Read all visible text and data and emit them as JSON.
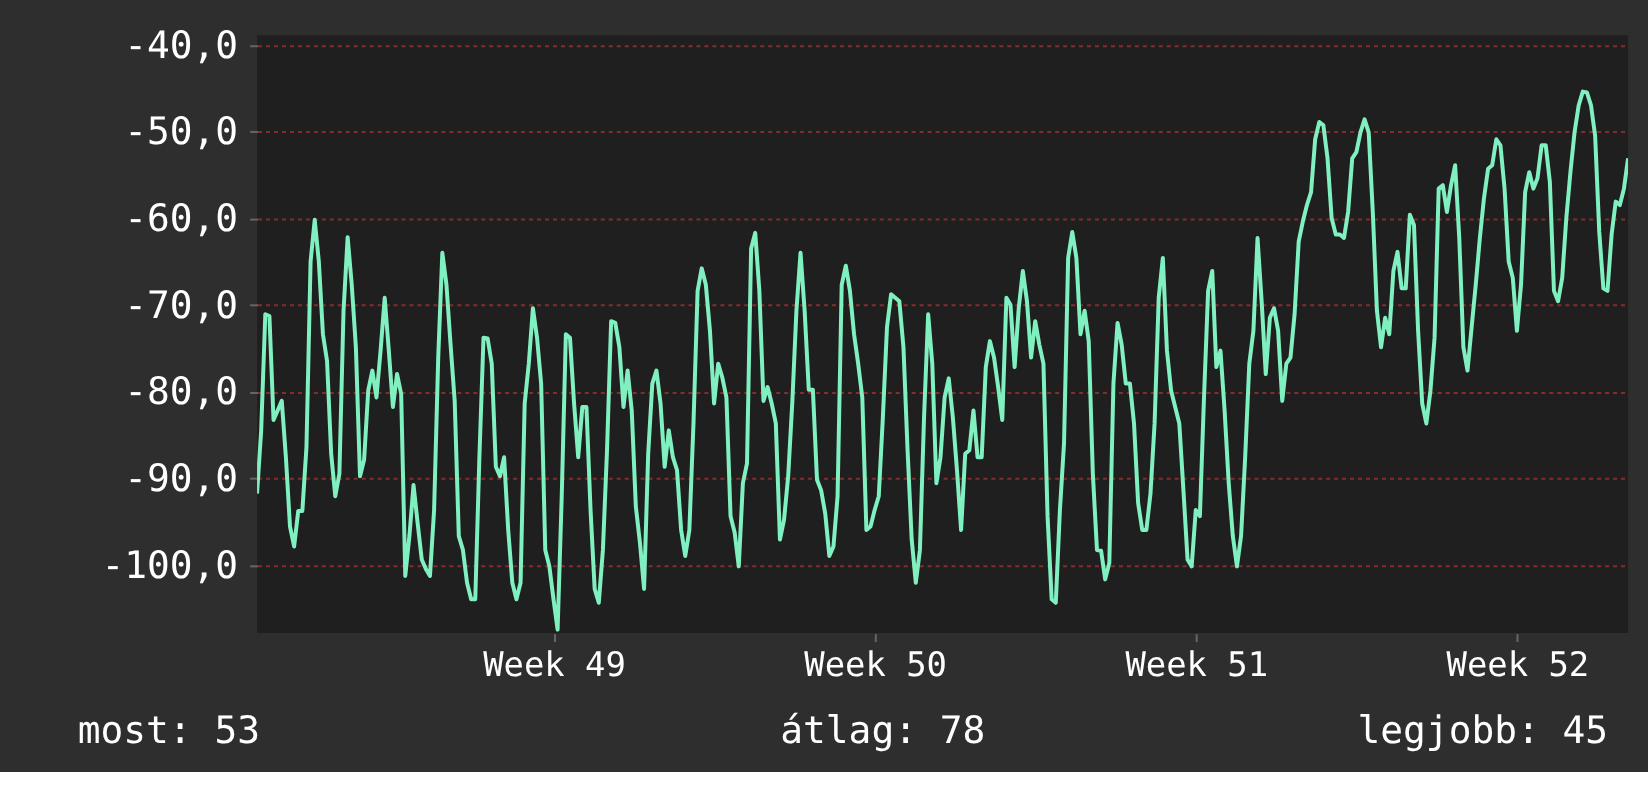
{
  "chart_data": {
    "type": "line",
    "categories": [
      null,
      null,
      null,
      null,
      null,
      null,
      null,
      null,
      null,
      null,
      null,
      null,
      null,
      null,
      null,
      null,
      null,
      null,
      null,
      null,
      null,
      null,
      null,
      null,
      null,
      null,
      null,
      null,
      null,
      null,
      null,
      null,
      null,
      null,
      null,
      null,
      null,
      null,
      null,
      null,
      null,
      null,
      null,
      null,
      null,
      null,
      null,
      null,
      null,
      null,
      null,
      null,
      null,
      null,
      null,
      null,
      null,
      null,
      null,
      null,
      null,
      null,
      null,
      null,
      null,
      null,
      null,
      null,
      null,
      null,
      null,
      null,
      "Week 49",
      null,
      null,
      null,
      null,
      null,
      null,
      null,
      null,
      null,
      null,
      null,
      null,
      null,
      null,
      null,
      null,
      null,
      null,
      null,
      null,
      null,
      null,
      null,
      null,
      null,
      null,
      null,
      null,
      null,
      null,
      null,
      null,
      null,
      null,
      null,
      null,
      null,
      null,
      null,
      null,
      null,
      null,
      null,
      null,
      null,
      null,
      null,
      null,
      null,
      null,
      null,
      null,
      null,
      null,
      null,
      null,
      null,
      null,
      null,
      null,
      null,
      null,
      null,
      null,
      null,
      null,
      null,
      null,
      null,
      null,
      null,
      null,
      null,
      null,
      null,
      null,
      null,
      "Week 50",
      null,
      null,
      null,
      null,
      null,
      null,
      null,
      null,
      null,
      null,
      null,
      null,
      null,
      null,
      null,
      null,
      null,
      null,
      null,
      null,
      null,
      null,
      null,
      null,
      null,
      null,
      null,
      null,
      null,
      null,
      null,
      null,
      null,
      null,
      null,
      null,
      null,
      null,
      null,
      null,
      null,
      null,
      null,
      null,
      null,
      null,
      null,
      null,
      null,
      null,
      null,
      null,
      null,
      null,
      null,
      null,
      null,
      null,
      null,
      null,
      null,
      null,
      null,
      null,
      null,
      null,
      null,
      null,
      null,
      null,
      null,
      null,
      null,
      null,
      null,
      null,
      null,
      "Week 51",
      null,
      null,
      null,
      null,
      null,
      null,
      null,
      null,
      null,
      null,
      null,
      null,
      null,
      null,
      null,
      null,
      null,
      null,
      null,
      null,
      null,
      null,
      null,
      null,
      null,
      null,
      null,
      null,
      null,
      null,
      null,
      null,
      null,
      null,
      null,
      null,
      null,
      null,
      null,
      null,
      null,
      null,
      null,
      null,
      null,
      null,
      null,
      null,
      null,
      null,
      null,
      null,
      null,
      null,
      null,
      null,
      null,
      null,
      null,
      null,
      null,
      null,
      null,
      null,
      null,
      null,
      null,
      null,
      null,
      null,
      null,
      null,
      null,
      null,
      null,
      null,
      null,
      "Week 52",
      null,
      null,
      null,
      null,
      null,
      null,
      null,
      null,
      null,
      null,
      null,
      null,
      null,
      null,
      null,
      null,
      null,
      null,
      null,
      null,
      null,
      null,
      null,
      null,
      null,
      null,
      null
    ],
    "series": [
      {
        "color": "#80f0c0",
        "values": [
          -91.8,
          -84.5,
          -71.1,
          -71.3,
          -83.3,
          -82.2,
          -81.1,
          -87.6,
          -95.6,
          -97.9,
          -93.8,
          -93.8,
          -86.4,
          -65.0,
          -60.2,
          -65.0,
          -73.4,
          -76.5,
          -87.2,
          -92.1,
          -89.5,
          -70.7,
          -62.2,
          -67.7,
          -74.9,
          -89.8,
          -87.9,
          -79.9,
          -77.6,
          -80.7,
          -75.3,
          -69.2,
          -75.3,
          -81.8,
          -78.0,
          -80.3,
          -101.3,
          -96.7,
          -90.8,
          -95.2,
          -99.4,
          -100.5,
          -101.3,
          -93.7,
          -76.1,
          -64.0,
          -67.7,
          -74.6,
          -81.1,
          -96.7,
          -98.3,
          -102.1,
          -104.0,
          -104.0,
          -87.6,
          -73.8,
          -73.9,
          -76.8,
          -88.7,
          -89.8,
          -87.6,
          -96.0,
          -102.1,
          -104.0,
          -102.1,
          -81.4,
          -76.8,
          -70.4,
          -73.8,
          -79.1,
          -98.3,
          -100.2,
          -104.0,
          -107.5,
          -92.1,
          -73.4,
          -73.8,
          -81.4,
          -87.6,
          -81.8,
          -81.8,
          -93.7,
          -102.8,
          -104.4,
          -98.3,
          -86.8,
          -71.9,
          -72.1,
          -74.9,
          -81.8,
          -77.6,
          -82.2,
          -93.3,
          -97.5,
          -102.8,
          -87.2,
          -79.1,
          -77.6,
          -81.4,
          -88.7,
          -84.5,
          -87.6,
          -89.1,
          -96.0,
          -99.0,
          -96.0,
          -83.7,
          -68.4,
          -65.8,
          -67.7,
          -73.0,
          -81.4,
          -76.8,
          -78.4,
          -80.7,
          -94.4,
          -96.3,
          -100.2,
          -90.6,
          -88.3,
          -63.5,
          -61.7,
          -68.4,
          -81.1,
          -79.5,
          -81.4,
          -83.7,
          -97.1,
          -94.8,
          -89.8,
          -81.3,
          -70.7,
          -64.0,
          -70.7,
          -79.8,
          -79.8,
          -90.2,
          -91.4,
          -94.1,
          -99.0,
          -97.9,
          -92.1,
          -67.7,
          -65.5,
          -68.4,
          -73.4,
          -76.8,
          -80.7,
          -96.0,
          -95.6,
          -93.7,
          -92.1,
          -83.0,
          -72.6,
          -68.8,
          -69.2,
          -69.6,
          -74.9,
          -86.8,
          -97.1,
          -102.1,
          -98.3,
          -83.0,
          -71.1,
          -76.8,
          -90.6,
          -87.6,
          -80.7,
          -78.5,
          -83.0,
          -89.1,
          -96.0,
          -87.2,
          -86.8,
          -82.2,
          -87.6,
          -87.6,
          -77.2,
          -74.2,
          -76.1,
          -79.5,
          -83.3,
          -69.2,
          -70.0,
          -77.2,
          -70.4,
          -66.1,
          -69.6,
          -76.1,
          -71.9,
          -74.6,
          -76.8,
          -94.4,
          -104.0,
          -104.4,
          -93.7,
          -86.0,
          -64.6,
          -61.6,
          -64.6,
          -73.4,
          -70.7,
          -74.2,
          -89.5,
          -98.3,
          -98.4,
          -101.7,
          -99.8,
          -79.1,
          -72.1,
          -74.6,
          -79.1,
          -79.1,
          -83.7,
          -92.9,
          -96.0,
          -96.0,
          -91.8,
          -83.7,
          -69.2,
          -64.6,
          -75.3,
          -79.9,
          -81.8,
          -83.7,
          -91.4,
          -99.4,
          -100.2,
          -93.7,
          -94.4,
          -80.7,
          -68.4,
          -66.1,
          -77.2,
          -75.3,
          -82.2,
          -90.6,
          -96.7,
          -100.2,
          -96.7,
          -87.6,
          -76.8,
          -73.0,
          -62.3,
          -69.6,
          -78.0,
          -71.5,
          -70.4,
          -73.0,
          -81.1,
          -76.8,
          -76.1,
          -71.1,
          -62.7,
          -60.4,
          -58.5,
          -57.0,
          -50.9,
          -48.9,
          -49.3,
          -53.1,
          -60.0,
          -61.9,
          -61.9,
          -62.3,
          -59.3,
          -53.1,
          -52.4,
          -50.1,
          -48.6,
          -50.1,
          -59.3,
          -70.7,
          -74.9,
          -71.5,
          -73.4,
          -66.1,
          -63.9,
          -68.1,
          -68.1,
          -59.6,
          -60.8,
          -73.0,
          -81.4,
          -83.7,
          -79.9,
          -73.8,
          -56.6,
          -56.2,
          -59.3,
          -56.2,
          -53.9,
          -62.3,
          -74.9,
          -77.6,
          -72.6,
          -67.7,
          -62.3,
          -57.7,
          -54.3,
          -53.9,
          -50.9,
          -51.6,
          -56.6,
          -65.0,
          -66.9,
          -73.0,
          -67.7,
          -57.0,
          -54.7,
          -56.6,
          -55.4,
          -51.6,
          -51.6,
          -55.8,
          -68.4,
          -69.6,
          -66.9,
          -60.0,
          -54.7,
          -50.1,
          -47.0,
          -45.4,
          -45.5,
          -47.0,
          -50.5,
          -61.6,
          -68.1,
          -68.4,
          -61.9,
          -58.1,
          -58.5,
          -56.6,
          -53.1
        ]
      }
    ],
    "ylim": [
      -107.9,
      -38.9
    ],
    "yticks": [
      {
        "value": -40,
        "label": "-40,0"
      },
      {
        "value": -50,
        "label": "-50,0"
      },
      {
        "value": -60,
        "label": "-60,0"
      },
      {
        "value": -70,
        "label": "-70,0"
      },
      {
        "value": -80,
        "label": "-80,0"
      },
      {
        "value": -90,
        "label": "-90,0"
      },
      {
        "value": -100,
        "label": "-100,0"
      }
    ],
    "grid": "y",
    "annotations": [
      "most: 53",
      "átlag: 78",
      "legjobb: 45"
    ]
  }
}
